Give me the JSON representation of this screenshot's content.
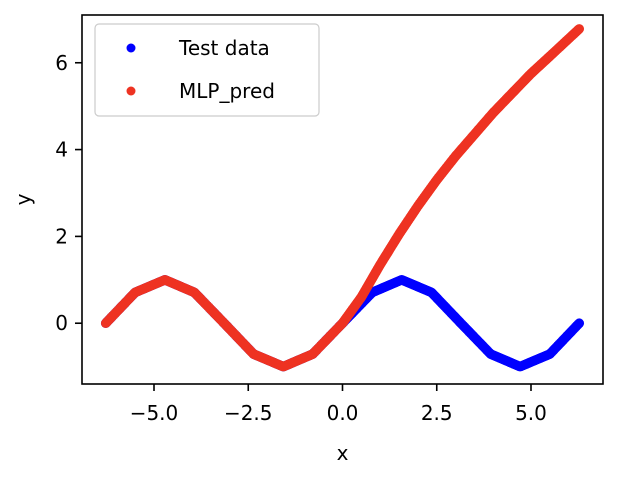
{
  "chart_data": {
    "type": "scatter",
    "title": "",
    "xlabel": "x",
    "ylabel": "y",
    "xlim": [
      -6.91,
      6.91
    ],
    "ylim": [
      -1.4,
      7.1
    ],
    "xticks": [
      -5.0,
      -2.5,
      0.0,
      2.5,
      5.0
    ],
    "xtick_labels": [
      "−5.0",
      "−2.5",
      "0.0",
      "2.5",
      "5.0"
    ],
    "yticks": [
      0,
      2,
      4,
      6
    ],
    "ytick_labels": [
      "0",
      "2",
      "4",
      "6"
    ],
    "grid": false,
    "legend_position": "top-left",
    "series": [
      {
        "name": "Test data",
        "color": "#0000ff",
        "x": [
          -6.28,
          -5.5,
          -4.71,
          -3.93,
          -3.14,
          -2.36,
          -1.57,
          -0.79,
          0.0,
          0.79,
          1.57,
          2.36,
          3.14,
          3.93,
          4.71,
          5.5,
          6.28
        ],
        "y": [
          0.0,
          0.71,
          1.0,
          0.71,
          0.0,
          -0.71,
          -1.0,
          -0.71,
          0.0,
          0.71,
          1.0,
          0.71,
          0.0,
          -0.71,
          -1.0,
          -0.71,
          0.0
        ]
      },
      {
        "name": "MLP_pred",
        "color": "#ee3322",
        "x": [
          -6.28,
          -5.5,
          -4.71,
          -3.93,
          -3.14,
          -2.36,
          -1.57,
          -0.79,
          0.0,
          0.5,
          1.0,
          1.5,
          2.0,
          2.5,
          3.0,
          3.5,
          4.0,
          4.5,
          5.0,
          5.5,
          6.28
        ],
        "y": [
          0.0,
          0.71,
          1.0,
          0.71,
          0.0,
          -0.71,
          -1.0,
          -0.71,
          0.0,
          0.6,
          1.35,
          2.05,
          2.7,
          3.3,
          3.85,
          4.35,
          4.85,
          5.3,
          5.75,
          6.15,
          6.78
        ]
      }
    ]
  }
}
